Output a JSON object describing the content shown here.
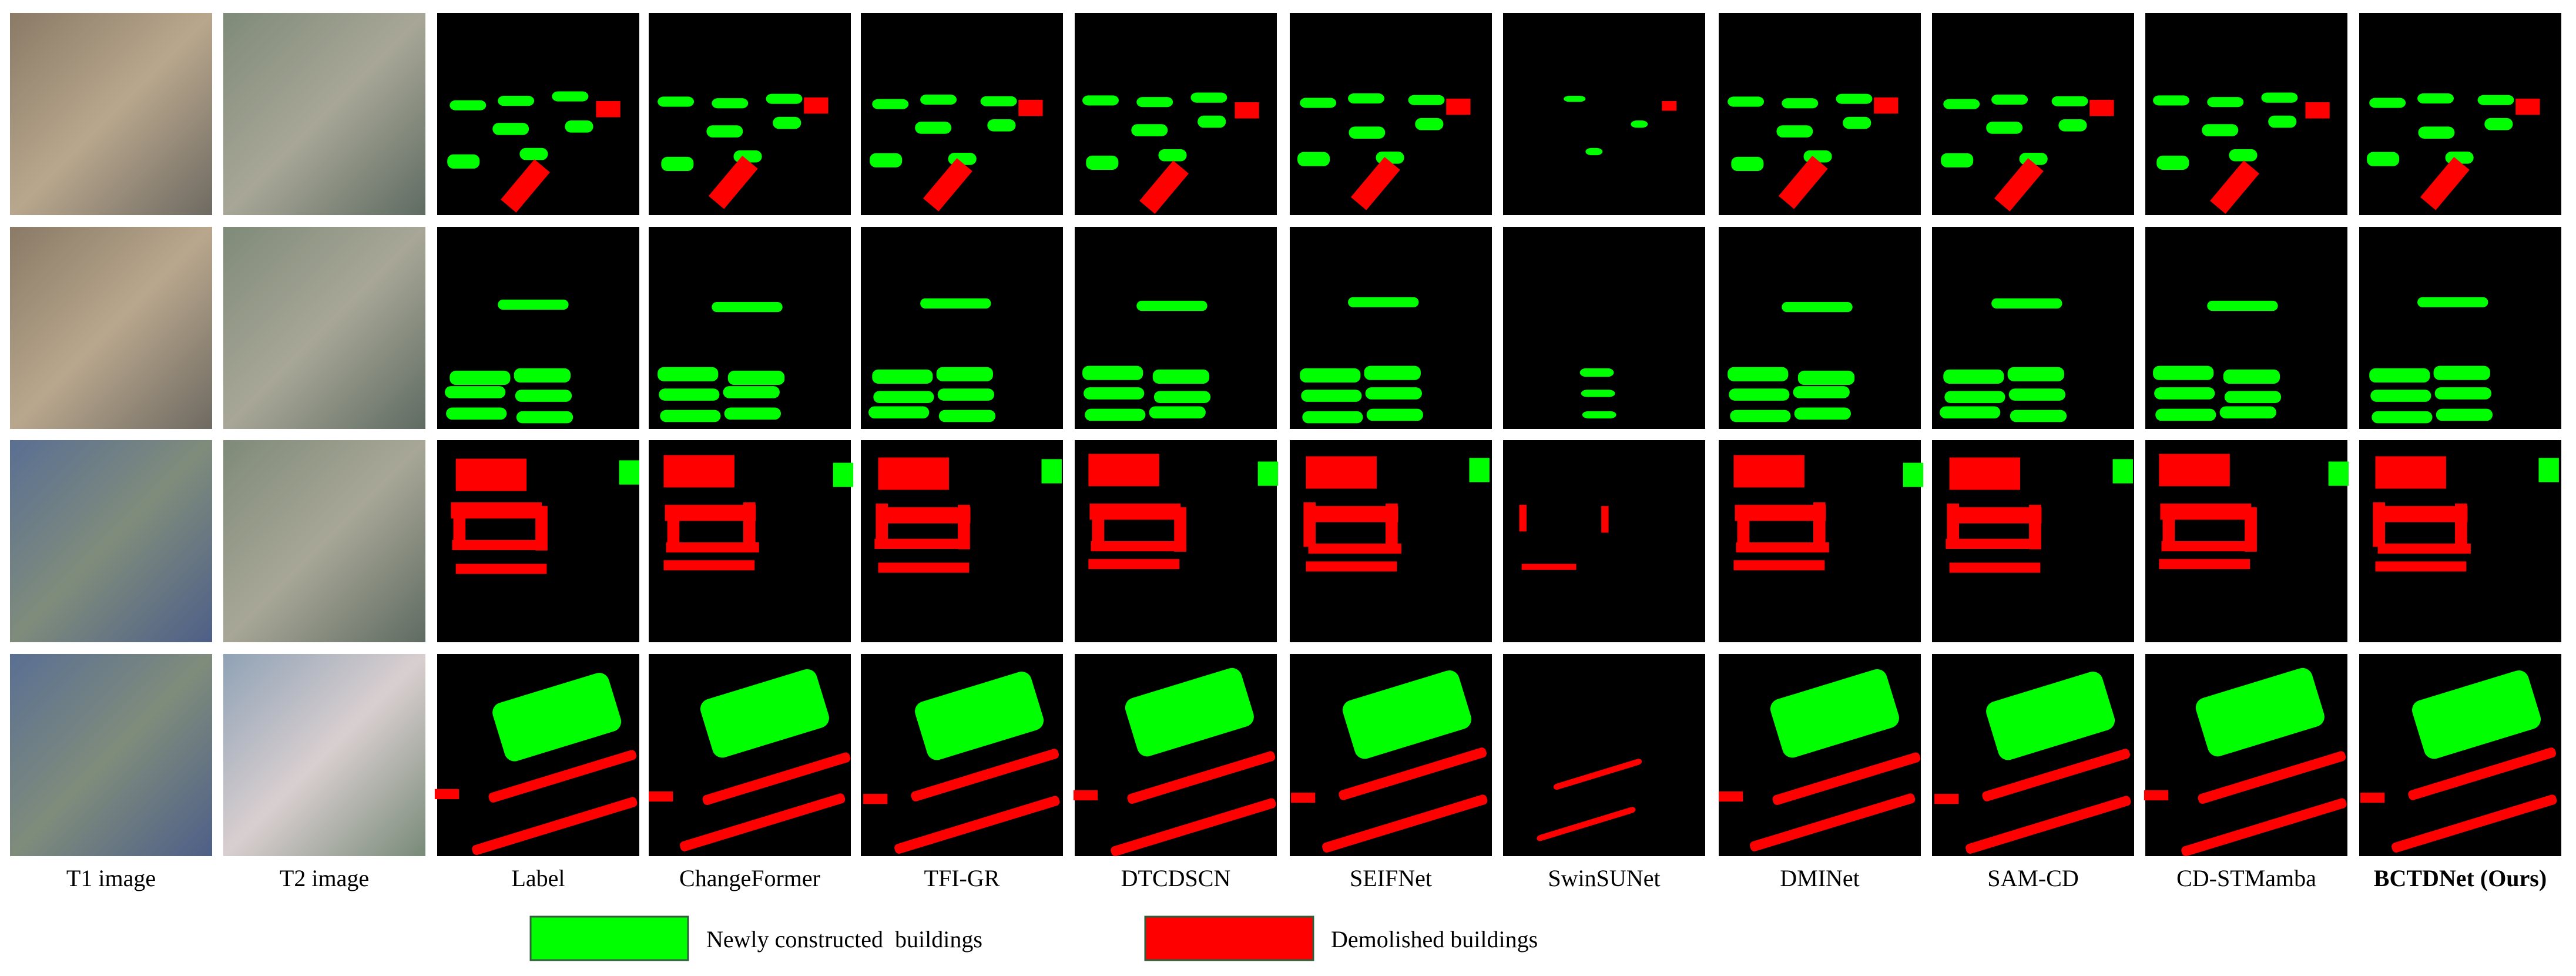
{
  "figure": {
    "columns": [
      "T1 image",
      "T2 image",
      "Label",
      "ChangeFormer",
      "TFI-GR",
      "DTCDSCN",
      "SEIFNet",
      "SwinSUNet",
      "DMINet",
      "SAM-CD",
      "CD-STMamba",
      "BCTDNet (Ours)"
    ],
    "legend": [
      {
        "label": "Newly constructed  buildings",
        "color": "#00ff00"
      },
      {
        "label": "Demolished buildings",
        "color": "#ff0000"
      }
    ]
  }
}
